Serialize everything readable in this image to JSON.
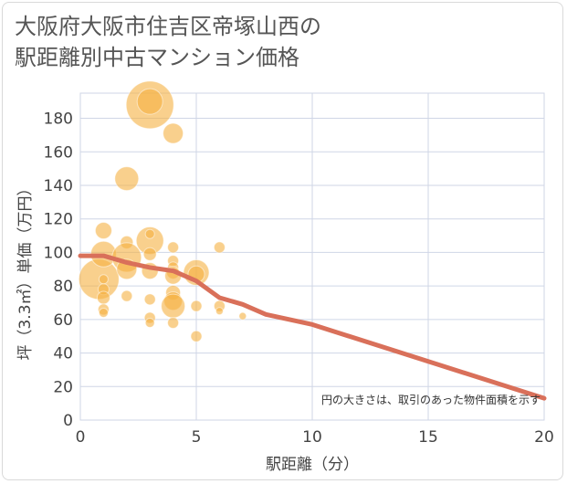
{
  "header": {
    "title_line1": "大阪府大阪市住吉区帝塚山西の",
    "title_line2": "駅距離別中古マンション価格"
  },
  "chart_data": {
    "type": "scatter",
    "title": "大阪府大阪市住吉区帝塚山西の駅距離別中古マンション価格",
    "xlabel": "駅距離（分）",
    "ylabel": "坪（3.3㎡）単価（万円）",
    "xlim": [
      0,
      20
    ],
    "ylim": [
      0,
      195
    ],
    "x_ticks": [
      0,
      5,
      10,
      15,
      20
    ],
    "y_ticks": [
      0,
      20,
      40,
      60,
      80,
      100,
      120,
      140,
      160,
      180
    ],
    "grid": true,
    "note": "円の大きさは、取引のあった物件面積を示す",
    "bubble_color": "#f5b041",
    "line_color": "#d9705a",
    "bubbles": [
      {
        "x": 0.8,
        "y": 84,
        "r": 22
      },
      {
        "x": 1,
        "y": 99,
        "r": 14
      },
      {
        "x": 1,
        "y": 113,
        "r": 9
      },
      {
        "x": 1,
        "y": 78,
        "r": 6
      },
      {
        "x": 1,
        "y": 73,
        "r": 7
      },
      {
        "x": 1,
        "y": 66,
        "r": 6
      },
      {
        "x": 1,
        "y": 64,
        "r": 5
      },
      {
        "x": 1,
        "y": 84,
        "r": 5
      },
      {
        "x": 2,
        "y": 144,
        "r": 13
      },
      {
        "x": 2,
        "y": 106,
        "r": 7
      },
      {
        "x": 2,
        "y": 97,
        "r": 16
      },
      {
        "x": 2,
        "y": 90,
        "r": 11
      },
      {
        "x": 2,
        "y": 74,
        "r": 6
      },
      {
        "x": 3,
        "y": 188,
        "r": 26
      },
      {
        "x": 3,
        "y": 190,
        "r": 14
      },
      {
        "x": 3,
        "y": 107,
        "r": 15
      },
      {
        "x": 3,
        "y": 111,
        "r": 5
      },
      {
        "x": 3,
        "y": 99,
        "r": 7
      },
      {
        "x": 3,
        "y": 89,
        "r": 9
      },
      {
        "x": 3,
        "y": 72,
        "r": 6
      },
      {
        "x": 3,
        "y": 61,
        "r": 6
      },
      {
        "x": 3,
        "y": 58,
        "r": 5
      },
      {
        "x": 4,
        "y": 171,
        "r": 11
      },
      {
        "x": 4,
        "y": 103,
        "r": 6
      },
      {
        "x": 4,
        "y": 95,
        "r": 6
      },
      {
        "x": 4,
        "y": 91,
        "r": 6
      },
      {
        "x": 4,
        "y": 88,
        "r": 7
      },
      {
        "x": 4,
        "y": 86,
        "r": 9
      },
      {
        "x": 4,
        "y": 76,
        "r": 8
      },
      {
        "x": 4,
        "y": 71,
        "r": 10
      },
      {
        "x": 4,
        "y": 68,
        "r": 13
      },
      {
        "x": 4,
        "y": 58,
        "r": 6
      },
      {
        "x": 5,
        "y": 88,
        "r": 14
      },
      {
        "x": 5,
        "y": 87,
        "r": 9
      },
      {
        "x": 5,
        "y": 68,
        "r": 6
      },
      {
        "x": 5,
        "y": 50,
        "r": 6
      },
      {
        "x": 6,
        "y": 103,
        "r": 6
      },
      {
        "x": 6,
        "y": 68,
        "r": 6
      },
      {
        "x": 6,
        "y": 65,
        "r": 4
      },
      {
        "x": 7,
        "y": 62,
        "r": 4
      }
    ],
    "trend": {
      "x": [
        0,
        1,
        2,
        3,
        4,
        5,
        6,
        7,
        8,
        10,
        15,
        20
      ],
      "y": [
        98,
        98,
        94,
        91,
        89,
        83,
        73,
        69,
        63,
        57,
        35,
        13
      ]
    }
  }
}
